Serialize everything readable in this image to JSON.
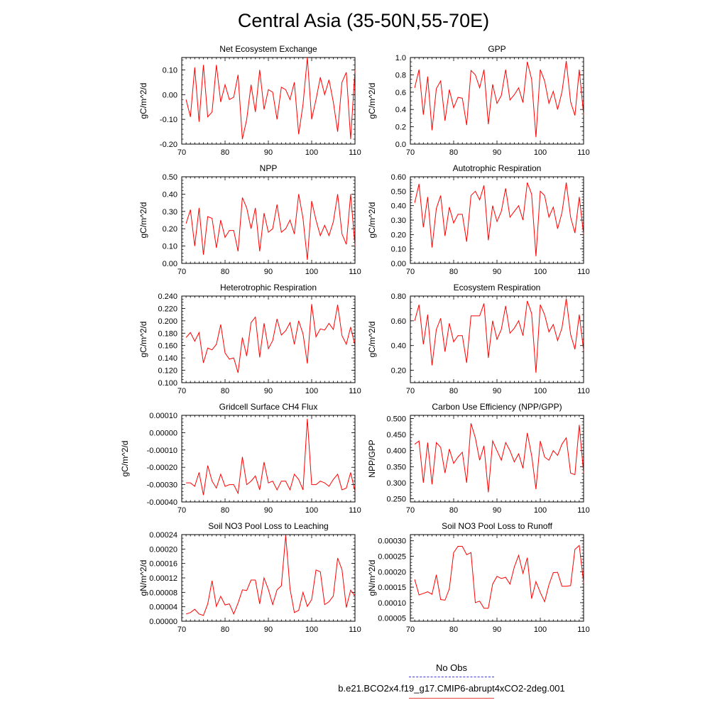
{
  "title": "Central Asia (35-50N,55-70E)",
  "legend": {
    "entries": [
      {
        "label": "No Obs",
        "color": "#3b3bd6",
        "style": "dashed"
      },
      {
        "label": "b.e21.BCO2x4.f19_g17.CMIP6-abrupt4xCO2-2deg.001",
        "color": "#e34040",
        "style": "solid"
      }
    ]
  },
  "chart_data": [
    {
      "type": "line",
      "title": "Net Ecosystem Exchange",
      "ylabel": "gC/m^2/d",
      "xlim": [
        70,
        110
      ],
      "ylim": [
        -0.2,
        0.15
      ],
      "xticks": [
        70,
        80,
        90,
        100,
        110
      ],
      "yticks": [
        {
          "v": -0.2,
          "label": "-0.20"
        },
        {
          "v": -0.1,
          "label": "-0.10"
        },
        {
          "v": 0,
          "label": "0.00"
        },
        {
          "v": 0.1,
          "label": "0.10"
        }
      ],
      "yminor": 0.02,
      "x_start": 71,
      "series": [
        {
          "color": "#ff0000",
          "values": [
            -0.02,
            -0.09,
            0.11,
            -0.11,
            0.12,
            -0.09,
            -0.07,
            0.12,
            -0.03,
            0.04,
            -0.02,
            -0.01,
            0.08,
            -0.18,
            -0.1,
            0.04,
            -0.07,
            0.1,
            -0.06,
            0.02,
            0.01,
            -0.1,
            0.03,
            0.02,
            -0.02,
            0.05,
            -0.16,
            -0.04,
            0.15,
            -0.1,
            -0.02,
            0.07,
            0.0,
            0.06,
            -0.03,
            -0.15,
            0.05,
            0.09,
            -0.18,
            0.1
          ]
        }
      ]
    },
    {
      "type": "line",
      "title": "GPP",
      "ylabel": "gC/m^2/d",
      "xlim": [
        70,
        110
      ],
      "ylim": [
        0,
        1
      ],
      "xticks": [
        70,
        80,
        90,
        100,
        110
      ],
      "yticks": [
        {
          "v": 0,
          "label": "0.0"
        },
        {
          "v": 0.2,
          "label": "0.2"
        },
        {
          "v": 0.4,
          "label": "0.4"
        },
        {
          "v": 0.6,
          "label": "0.6"
        },
        {
          "v": 0.8,
          "label": "0.8"
        },
        {
          "v": 1.0,
          "label": "1.0"
        }
      ],
      "yminor": 0.05,
      "x_start": 71,
      "series": [
        {
          "color": "#ff0000",
          "values": [
            0.65,
            0.86,
            0.34,
            0.78,
            0.16,
            0.64,
            0.73,
            0.27,
            0.63,
            0.42,
            0.54,
            0.53,
            0.22,
            0.85,
            0.8,
            0.65,
            0.86,
            0.23,
            0.69,
            0.47,
            0.56,
            0.86,
            0.51,
            0.57,
            0.65,
            0.48,
            0.95,
            0.75,
            0.08,
            0.86,
            0.73,
            0.47,
            0.61,
            0.4,
            0.6,
            0.96,
            0.49,
            0.33,
            0.86,
            0.34
          ]
        }
      ]
    },
    {
      "type": "line",
      "title": "NPP",
      "ylabel": "gC/m^2/d",
      "xlim": [
        70,
        110
      ],
      "ylim": [
        0,
        0.5
      ],
      "xticks": [
        70,
        80,
        90,
        100,
        110
      ],
      "yticks": [
        {
          "v": 0,
          "label": "0.00"
        },
        {
          "v": 0.1,
          "label": "0.10"
        },
        {
          "v": 0.2,
          "label": "0.20"
        },
        {
          "v": 0.3,
          "label": "0.30"
        },
        {
          "v": 0.4,
          "label": "0.40"
        },
        {
          "v": 0.5,
          "label": "0.50"
        }
      ],
      "yminor": 0.02,
      "x_start": 71,
      "series": [
        {
          "color": "#ff0000",
          "values": [
            0.23,
            0.31,
            0.1,
            0.32,
            0.05,
            0.27,
            0.26,
            0.09,
            0.25,
            0.15,
            0.19,
            0.19,
            0.07,
            0.38,
            0.32,
            0.2,
            0.32,
            0.07,
            0.29,
            0.18,
            0.2,
            0.34,
            0.18,
            0.2,
            0.25,
            0.17,
            0.4,
            0.26,
            0.02,
            0.36,
            0.25,
            0.16,
            0.22,
            0.16,
            0.24,
            0.4,
            0.17,
            0.11,
            0.4,
            0.1
          ]
        }
      ]
    },
    {
      "type": "line",
      "title": "Autotrophic Respiration",
      "ylabel": "gC/m^2/d",
      "xlim": [
        70,
        110
      ],
      "ylim": [
        0,
        0.6
      ],
      "xticks": [
        70,
        80,
        90,
        100,
        110
      ],
      "yticks": [
        {
          "v": 0,
          "label": "0.00"
        },
        {
          "v": 0.1,
          "label": "0.10"
        },
        {
          "v": 0.2,
          "label": "0.20"
        },
        {
          "v": 0.3,
          "label": "0.30"
        },
        {
          "v": 0.4,
          "label": "0.40"
        },
        {
          "v": 0.5,
          "label": "0.50"
        },
        {
          "v": 0.6,
          "label": "0.60"
        }
      ],
      "yminor": 0.02,
      "x_start": 71,
      "series": [
        {
          "color": "#ff0000",
          "values": [
            0.42,
            0.55,
            0.25,
            0.46,
            0.11,
            0.38,
            0.47,
            0.19,
            0.39,
            0.28,
            0.34,
            0.34,
            0.15,
            0.47,
            0.5,
            0.44,
            0.54,
            0.16,
            0.4,
            0.29,
            0.36,
            0.52,
            0.32,
            0.36,
            0.4,
            0.3,
            0.56,
            0.48,
            0.05,
            0.5,
            0.47,
            0.32,
            0.39,
            0.24,
            0.35,
            0.56,
            0.32,
            0.21,
            0.46,
            0.2
          ]
        }
      ]
    },
    {
      "type": "line",
      "title": "Heterotrophic Respiration",
      "ylabel": "gC/m^2/d",
      "xlim": [
        70,
        110
      ],
      "ylim": [
        0.1,
        0.24
      ],
      "xticks": [
        70,
        80,
        90,
        100,
        110
      ],
      "yticks": [
        {
          "v": 0.1,
          "label": "0.100"
        },
        {
          "v": 0.12,
          "label": "0.120"
        },
        {
          "v": 0.14,
          "label": "0.140"
        },
        {
          "v": 0.16,
          "label": "0.160"
        },
        {
          "v": 0.18,
          "label": "0.180"
        },
        {
          "v": 0.2,
          "label": "0.200"
        },
        {
          "v": 0.22,
          "label": "0.220"
        },
        {
          "v": 0.24,
          "label": "0.240"
        }
      ],
      "yminor": 0.005,
      "x_start": 71,
      "series": [
        {
          "color": "#ff0000",
          "values": [
            0.173,
            0.181,
            0.167,
            0.181,
            0.132,
            0.156,
            0.153,
            0.162,
            0.194,
            0.148,
            0.138,
            0.14,
            0.116,
            0.173,
            0.143,
            0.197,
            0.206,
            0.141,
            0.196,
            0.155,
            0.168,
            0.203,
            0.177,
            0.184,
            0.197,
            0.162,
            0.2,
            0.179,
            0.131,
            0.227,
            0.174,
            0.187,
            0.185,
            0.196,
            0.186,
            0.226,
            0.176,
            0.162,
            0.19,
            0.16
          ]
        }
      ]
    },
    {
      "type": "line",
      "title": "Ecosystem Respiration",
      "ylabel": "gC/m^2/d",
      "xlim": [
        70,
        110
      ],
      "ylim": [
        0.1,
        0.8
      ],
      "xticks": [
        70,
        80,
        90,
        100,
        110
      ],
      "yticks": [
        {
          "v": 0.2,
          "label": "0.20"
        },
        {
          "v": 0.4,
          "label": "0.40"
        },
        {
          "v": 0.6,
          "label": "0.60"
        },
        {
          "v": 0.8,
          "label": "0.80"
        }
      ],
      "yminor": 0.05,
      "x_start": 71,
      "series": [
        {
          "color": "#ff0000",
          "values": [
            0.6,
            0.73,
            0.41,
            0.65,
            0.24,
            0.53,
            0.62,
            0.35,
            0.58,
            0.43,
            0.48,
            0.48,
            0.26,
            0.64,
            0.64,
            0.64,
            0.74,
            0.3,
            0.6,
            0.45,
            0.53,
            0.72,
            0.5,
            0.54,
            0.6,
            0.48,
            0.76,
            0.66,
            0.18,
            0.73,
            0.65,
            0.51,
            0.57,
            0.44,
            0.54,
            0.78,
            0.49,
            0.37,
            0.65,
            0.36
          ]
        }
      ]
    },
    {
      "type": "line",
      "title": "Gridcell Surface CH4 Flux",
      "ylabel": "gC/m^2/d",
      "xlim": [
        70,
        110
      ],
      "ylim": [
        -0.0004,
        0.0001
      ],
      "xticks": [
        70,
        80,
        90,
        100,
        110
      ],
      "yticks": [
        {
          "v": -0.0004,
          "label": "-0.00040"
        },
        {
          "v": -0.0003,
          "label": "-0.00030"
        },
        {
          "v": -0.0002,
          "label": "-0.00020"
        },
        {
          "v": -0.0001,
          "label": "-0.00010"
        },
        {
          "v": 0,
          "label": "0.00000"
        },
        {
          "v": 0.0001,
          "label": "0.00010"
        }
      ],
      "yminor": 2e-05,
      "x_start": 71,
      "series": [
        {
          "color": "#ff0000",
          "values": [
            -0.00029,
            -0.00029,
            -0.00031,
            -0.00023,
            -0.00036,
            -0.00019,
            -0.00028,
            -0.00032,
            -0.00024,
            -0.00031,
            -0.0003,
            -0.0003,
            -0.00035,
            -0.00014,
            -0.0003,
            -0.00028,
            -0.00025,
            -0.00033,
            -0.00017,
            -0.00029,
            -0.00028,
            -0.00033,
            -0.00028,
            -0.00028,
            -0.00033,
            -0.00024,
            -0.00027,
            -0.00033,
            8e-05,
            -0.0003,
            -0.0003,
            -0.00028,
            -0.00029,
            -0.00031,
            -0.00027,
            -0.00024,
            -0.00033,
            -0.00032,
            -0.00023,
            -0.00034
          ]
        }
      ]
    },
    {
      "type": "line",
      "title": "Carbon Use Efficiency (NPP/GPP)",
      "ylabel": "NPP/GPP",
      "xlim": [
        70,
        110
      ],
      "ylim": [
        0.24,
        0.51
      ],
      "xticks": [
        70,
        80,
        90,
        100,
        110
      ],
      "yticks": [
        {
          "v": 0.25,
          "label": "0.250"
        },
        {
          "v": 0.3,
          "label": "0.300"
        },
        {
          "v": 0.35,
          "label": "0.350"
        },
        {
          "v": 0.4,
          "label": "0.400"
        },
        {
          "v": 0.45,
          "label": "0.450"
        },
        {
          "v": 0.5,
          "label": "0.500"
        }
      ],
      "yminor": 0.01,
      "x_start": 71,
      "series": [
        {
          "color": "#ff0000",
          "values": [
            0.42,
            0.43,
            0.3,
            0.425,
            0.295,
            0.425,
            0.41,
            0.33,
            0.405,
            0.36,
            0.38,
            0.395,
            0.3,
            0.485,
            0.44,
            0.37,
            0.415,
            0.27,
            0.43,
            0.4,
            0.37,
            0.425,
            0.4,
            0.365,
            0.39,
            0.345,
            0.455,
            0.385,
            0.28,
            0.43,
            0.38,
            0.37,
            0.4,
            0.385,
            0.42,
            0.44,
            0.33,
            0.325,
            0.48,
            0.33
          ]
        }
      ]
    },
    {
      "type": "line",
      "title": "Soil NO3 Pool Loss to Leaching",
      "ylabel": "gN/m^2/d",
      "xlim": [
        70,
        110
      ],
      "ylim": [
        0,
        0.00024
      ],
      "xticks": [
        70,
        80,
        90,
        100,
        110
      ],
      "yticks": [
        {
          "v": 0,
          "label": "0.00000"
        },
        {
          "v": 4e-05,
          "label": "0.00004"
        },
        {
          "v": 8e-05,
          "label": "0.00008"
        },
        {
          "v": 0.00012,
          "label": "0.00012"
        },
        {
          "v": 0.00016,
          "label": "0.00016"
        },
        {
          "v": 0.0002,
          "label": "0.00020"
        },
        {
          "v": 0.00024,
          "label": "0.00024"
        }
      ],
      "yminor": 1e-05,
      "x_start": 71,
      "series": [
        {
          "color": "#ff0000",
          "values": [
            2e-05,
            2.4e-05,
            3.3e-05,
            2e-05,
            1.6e-05,
            4.8e-05,
            0.000112,
            4.1e-05,
            6.9e-05,
            4.5e-05,
            4.8e-05,
            2e-05,
            5e-05,
            8.7e-05,
            8.5e-05,
            0.000114,
            0.000114,
            4.8e-05,
            0.00012,
            8.8e-05,
            4.6e-05,
            8.7e-05,
            9.8e-05,
            0.000238,
            9e-05,
            2.4e-05,
            3e-05,
            8e-05,
            4.1e-05,
            6e-05,
            0.000142,
            0.000137,
            4.6e-05,
            5.4e-05,
            7e-05,
            0.000175,
            0.000143,
            3.8e-05,
            8.6e-05,
            7e-05
          ]
        }
      ]
    },
    {
      "type": "line",
      "title": "Soil NO3 Pool Loss to Runoff",
      "ylabel": "gN/m^2/d",
      "xlim": [
        70,
        110
      ],
      "ylim": [
        4e-05,
        0.00032
      ],
      "xticks": [
        70,
        80,
        90,
        100,
        110
      ],
      "yticks": [
        {
          "v": 5e-05,
          "label": "0.00005"
        },
        {
          "v": 0.0001,
          "label": "0.00010"
        },
        {
          "v": 0.00015,
          "label": "0.00015"
        },
        {
          "v": 0.0002,
          "label": "0.00020"
        },
        {
          "v": 0.00025,
          "label": "0.00025"
        },
        {
          "v": 0.0003,
          "label": "0.00030"
        }
      ],
      "yminor": 1e-05,
      "x_start": 71,
      "series": [
        {
          "color": "#ff0000",
          "values": [
            0.000175,
            0.000125,
            0.00013,
            0.000135,
            0.000127,
            0.00019,
            0.00011,
            0.000108,
            0.000145,
            0.000262,
            0.000282,
            0.000282,
            0.000255,
            0.000262,
            0.0001,
            0.000105,
            8.2e-05,
            8.2e-05,
            0.00016,
            0.000185,
            0.000178,
            0.000182,
            0.00016,
            0.000215,
            0.000253,
            0.000195,
            0.000245,
            0.000113,
            0.000168,
            0.000133,
            0.000103,
            0.000158,
            0.000197,
            0.000198,
            0.000153,
            0.000153,
            0.000155,
            0.000272,
            0.000285,
            0.000165
          ]
        }
      ]
    }
  ]
}
